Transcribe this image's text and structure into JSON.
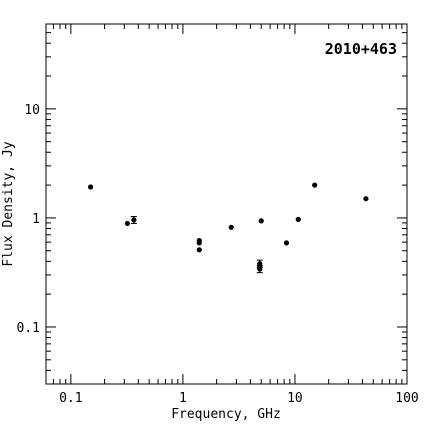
{
  "chart_data": {
    "type": "scatter",
    "title": "",
    "annotation": "2010+463",
    "xlabel": "Frequency, GHz",
    "ylabel": "Flux Density, Jy",
    "xscale": "log",
    "yscale": "log",
    "xlim": [
      0.06,
      100
    ],
    "ylim": [
      0.03,
      60
    ],
    "grid": false,
    "legend": "none",
    "xticks": [
      {
        "value": 0.1,
        "label": "0.1"
      },
      {
        "value": 1,
        "label": "1"
      },
      {
        "value": 10,
        "label": "10"
      },
      {
        "value": 100,
        "label": "100"
      }
    ],
    "yticks": [
      {
        "value": 0.1,
        "label": "0.1"
      },
      {
        "value": 1,
        "label": "1"
      },
      {
        "value": 10,
        "label": "10"
      }
    ],
    "series": [
      {
        "points": [
          {
            "x": 0.15,
            "y": 1.92
          },
          {
            "x": 0.32,
            "y": 0.89
          },
          {
            "x": 0.365,
            "y": 0.96,
            "yerr": 0.07
          },
          {
            "x": 1.4,
            "y": 0.62
          },
          {
            "x": 1.4,
            "y": 0.59
          },
          {
            "x": 1.4,
            "y": 0.51
          },
          {
            "x": 2.7,
            "y": 0.82
          },
          {
            "x": 4.85,
            "y": 0.38,
            "yerr": 0.03
          },
          {
            "x": 4.85,
            "y": 0.36
          },
          {
            "x": 4.85,
            "y": 0.34,
            "yerr": 0.025
          },
          {
            "x": 5.0,
            "y": 0.94
          },
          {
            "x": 8.4,
            "y": 0.59
          },
          {
            "x": 10.7,
            "y": 0.97
          },
          {
            "x": 15.0,
            "y": 2.0
          },
          {
            "x": 43.0,
            "y": 1.5
          }
        ]
      }
    ]
  }
}
